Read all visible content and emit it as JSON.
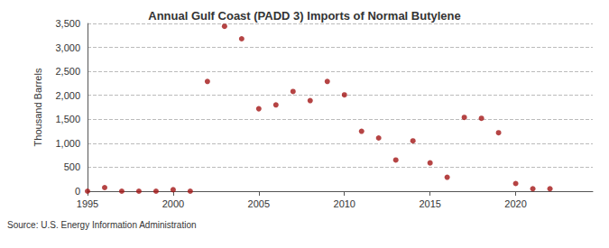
{
  "chart_data": {
    "type": "scatter",
    "title": "Annual Gulf Coast (PADD 3) Imports of Normal Butylene",
    "ylabel": "Thousand Barrels",
    "source": "Source: U.S. Energy Information Administration",
    "x": [
      1995,
      1996,
      1997,
      1998,
      1999,
      2000,
      2001,
      2002,
      2003,
      2004,
      2005,
      2006,
      2007,
      2008,
      2009,
      2010,
      2011,
      2012,
      2013,
      2014,
      2015,
      2016,
      2017,
      2018,
      2019,
      2020,
      2021,
      2022
    ],
    "values": [
      0,
      75,
      0,
      0,
      0,
      30,
      0,
      2290,
      3440,
      3180,
      1720,
      1800,
      2080,
      1890,
      2290,
      2010,
      1250,
      1110,
      650,
      1050,
      590,
      290,
      1540,
      1520,
      1220,
      160,
      50,
      50
    ],
    "color": "#a31515",
    "marker": "circle",
    "xlim": [
      1995,
      2024.5
    ],
    "xticks": [
      1995,
      2000,
      2005,
      2010,
      2015,
      2020
    ],
    "ylim": [
      0,
      3500
    ],
    "yticks": [
      0,
      500,
      {
        "value": 1000,
        "label": "1,000"
      },
      {
        "value": 1500,
        "label": "1,500"
      },
      {
        "value": 2000,
        "label": "2,000"
      },
      {
        "value": 2500,
        "label": "2,500"
      },
      {
        "value": 3000,
        "label": "3,000"
      },
      {
        "value": 3500,
        "label": "3,500"
      }
    ],
    "grid": true
  }
}
